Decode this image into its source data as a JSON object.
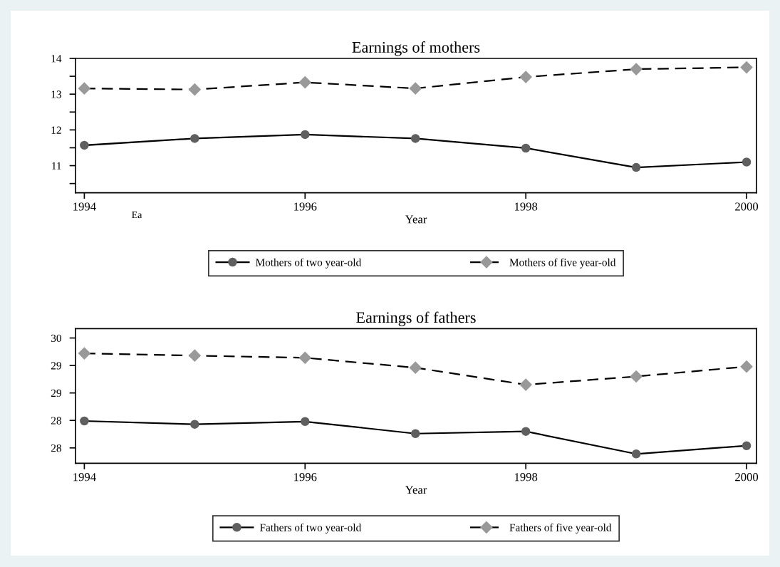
{
  "chart_data": [
    {
      "type": "line",
      "title": "Earnings of mothers",
      "xlabel": "Year",
      "annotations": [
        "Ea"
      ],
      "x": [
        1994,
        1995,
        1996,
        1997,
        1998,
        1999,
        2000
      ],
      "series": [
        {
          "name": "Mothers of two year-old",
          "color": "#5f5f5f",
          "marker": "circle",
          "line_style": "solid",
          "values": [
            11.57,
            11.76,
            11.87,
            11.76,
            11.49,
            10.95,
            11.1
          ]
        },
        {
          "name": "Mothers of five year-old",
          "color": "#999999",
          "marker": "diamond",
          "line_style": "dashed",
          "values": [
            13.16,
            13.13,
            13.33,
            13.16,
            13.48,
            13.7,
            13.75
          ]
        }
      ],
      "xlim": [
        1993.92,
        2000.09
      ],
      "xticks": [
        1994,
        1996,
        1998,
        2000
      ],
      "ylim": [
        10.24,
        14
      ],
      "yticks": [
        14,
        {
          "value": 13.5,
          "label": null
        },
        13,
        {
          "value": 12.5,
          "label": null
        },
        12,
        {
          "value": 11.5,
          "label": null
        },
        11,
        {
          "value": 10.5,
          "label": null
        }
      ],
      "grid": false,
      "legend": "bottom"
    },
    {
      "type": "line",
      "title": "Earnings of fathers",
      "xlabel": "Year",
      "x": [
        1994,
        1995,
        1996,
        1997,
        1998,
        1999,
        2000
      ],
      "series": [
        {
          "name": "Fathers of two year-old",
          "color": "#5f5f5f",
          "marker": "circle",
          "line_style": "solid",
          "values": [
            28.24,
            28.18,
            28.23,
            28.01,
            28.05,
            27.64,
            27.79
          ]
        },
        {
          "name": "Fathers of five year-old",
          "color": "#999999",
          "marker": "diamond",
          "line_style": "dashed",
          "values": [
            29.47,
            29.43,
            29.39,
            29.21,
            28.9,
            29.05,
            29.23
          ]
        }
      ],
      "xlim": [
        1993.92,
        2000.09
      ],
      "xticks": [
        1994,
        1996,
        1998,
        2000
      ],
      "ylim": [
        27.47,
        29.92
      ],
      "yticks": [
        {
          "value": 29.75,
          "label": "30"
        },
        {
          "value": 29.25,
          "label": "29"
        },
        {
          "value": 28.75,
          "label": "29"
        },
        {
          "value": 28.25,
          "label": "28"
        },
        {
          "value": 27.75,
          "label": "28"
        }
      ],
      "grid": false,
      "legend": "bottom"
    }
  ]
}
